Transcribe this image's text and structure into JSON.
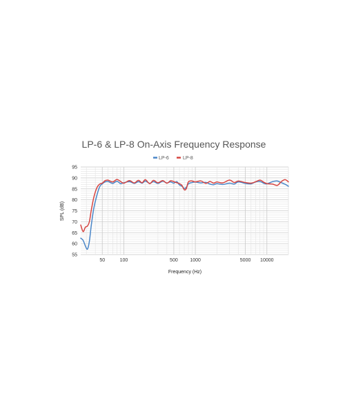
{
  "colors": {
    "LP-6": "#4a86c8",
    "LP-8": "#d64541"
  },
  "chart_data": {
    "type": "line",
    "title": "LP-6 & LP-8 On-Axis Frequency Response",
    "xlabel": "Frequency (Hz)",
    "ylabel": "SPL (dB)",
    "xscale": "log",
    "xlim": [
      25,
      20000
    ],
    "ylim": [
      55,
      95
    ],
    "yticks": [
      55,
      60,
      65,
      70,
      75,
      80,
      85,
      90,
      95
    ],
    "xticks": [
      50,
      100,
      500,
      1000,
      5000,
      10000
    ],
    "grid": true,
    "legend_position": "top-center",
    "series": [
      {
        "name": "LP-6",
        "color": "#4a86c8",
        "points": [
          [
            25,
            62.5
          ],
          [
            27,
            61.5
          ],
          [
            29,
            59
          ],
          [
            31,
            57.5
          ],
          [
            33,
            61
          ],
          [
            35,
            68
          ],
          [
            38,
            76
          ],
          [
            42,
            82
          ],
          [
            46,
            86
          ],
          [
            50,
            87.3
          ],
          [
            55,
            88.2
          ],
          [
            60,
            88.4
          ],
          [
            70,
            87.5
          ],
          [
            80,
            88.5
          ],
          [
            90,
            87.4
          ],
          [
            100,
            87.8
          ],
          [
            120,
            88.3
          ],
          [
            140,
            87.5
          ],
          [
            160,
            88.3
          ],
          [
            180,
            87.6
          ],
          [
            200,
            88.6
          ],
          [
            230,
            87.5
          ],
          [
            260,
            88.3
          ],
          [
            300,
            87.5
          ],
          [
            350,
            88.5
          ],
          [
            400,
            87.7
          ],
          [
            450,
            88.2
          ],
          [
            500,
            87.6
          ],
          [
            550,
            88.3
          ],
          [
            600,
            86.8
          ],
          [
            650,
            86.2
          ],
          [
            700,
            85.2
          ],
          [
            750,
            85.8
          ],
          [
            800,
            87.3
          ],
          [
            900,
            87.9
          ],
          [
            1000,
            88.1
          ],
          [
            1200,
            87.7
          ],
          [
            1400,
            88.0
          ],
          [
            1600,
            87.2
          ],
          [
            1800,
            86.9
          ],
          [
            2000,
            87.4
          ],
          [
            2400,
            87.0
          ],
          [
            3000,
            87.6
          ],
          [
            3500,
            87.2
          ],
          [
            4000,
            88.2
          ],
          [
            5000,
            87.5
          ],
          [
            6000,
            87.3
          ],
          [
            7000,
            88.2
          ],
          [
            8000,
            88.4
          ],
          [
            9000,
            87.6
          ],
          [
            10000,
            87.3
          ],
          [
            12000,
            88.3
          ],
          [
            14000,
            88.6
          ],
          [
            16000,
            87.8
          ],
          [
            18000,
            87.1
          ],
          [
            20000,
            86.2
          ]
        ]
      },
      {
        "name": "LP-8",
        "color": "#d64541",
        "points": [
          [
            25,
            68.5
          ],
          [
            27,
            65.5
          ],
          [
            29,
            67.5
          ],
          [
            31,
            68
          ],
          [
            33,
            70
          ],
          [
            35,
            75
          ],
          [
            38,
            81
          ],
          [
            42,
            85.5
          ],
          [
            46,
            87.2
          ],
          [
            50,
            87.6
          ],
          [
            55,
            88.8
          ],
          [
            60,
            89.0
          ],
          [
            70,
            88.2
          ],
          [
            80,
            89.3
          ],
          [
            90,
            88.4
          ],
          [
            100,
            87.6
          ],
          [
            120,
            88.8
          ],
          [
            140,
            87.7
          ],
          [
            160,
            88.9
          ],
          [
            180,
            87.8
          ],
          [
            200,
            89.2
          ],
          [
            230,
            87.4
          ],
          [
            260,
            88.9
          ],
          [
            300,
            87.8
          ],
          [
            350,
            88.8
          ],
          [
            400,
            87.6
          ],
          [
            450,
            88.7
          ],
          [
            500,
            88.3
          ],
          [
            550,
            87.8
          ],
          [
            600,
            87.4
          ],
          [
            650,
            86.6
          ],
          [
            700,
            84.6
          ],
          [
            750,
            85.2
          ],
          [
            800,
            88.2
          ],
          [
            900,
            88.6
          ],
          [
            1000,
            88.2
          ],
          [
            1200,
            88.6
          ],
          [
            1400,
            87.5
          ],
          [
            1600,
            88.4
          ],
          [
            1800,
            87.6
          ],
          [
            2000,
            88.2
          ],
          [
            2400,
            87.7
          ],
          [
            3000,
            89.0
          ],
          [
            3500,
            87.9
          ],
          [
            4000,
            88.6
          ],
          [
            5000,
            87.9
          ],
          [
            6000,
            87.6
          ],
          [
            7000,
            88.3
          ],
          [
            8000,
            89.0
          ],
          [
            9000,
            88.1
          ],
          [
            10000,
            87.4
          ],
          [
            12000,
            87.2
          ],
          [
            14000,
            86.6
          ],
          [
            16000,
            88.4
          ],
          [
            18000,
            89.2
          ],
          [
            20000,
            88.2
          ]
        ]
      }
    ]
  }
}
